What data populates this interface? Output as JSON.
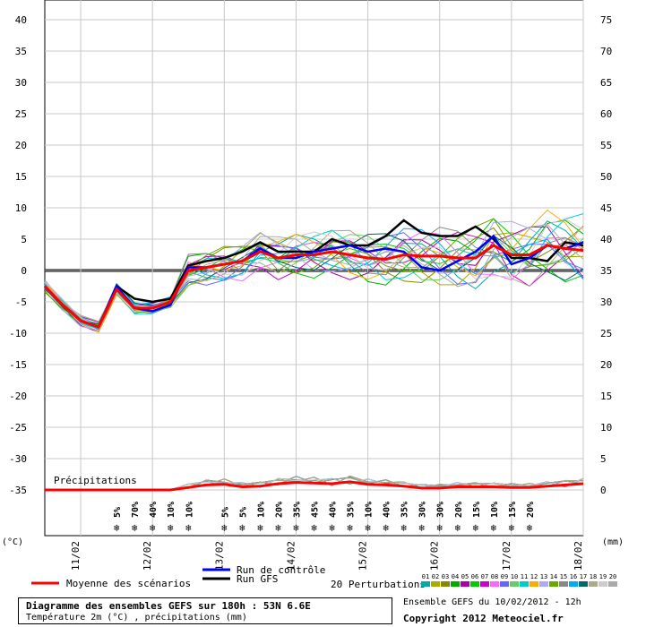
{
  "chart_data": {
    "type": "line",
    "title": "Diagramme des ensembles GEFS sur 180h : 53N 6.6E",
    "subtitle": "Température 2m (°C) , précipitations (mm)",
    "left_unit": "(°C)",
    "right_unit": "(mm)",
    "ylim_left": [
      -35,
      40
    ],
    "ylim_right": [
      0,
      75
    ],
    "left_ticks": [
      "40",
      "35",
      "30",
      "25",
      "20",
      "15",
      "10",
      "5",
      "0",
      "-5",
      "-10",
      "-15",
      "-20",
      "-25",
      "-30",
      "-35"
    ],
    "right_ticks": [
      "75",
      "70",
      "65",
      "60",
      "55",
      "50",
      "45",
      "40",
      "35",
      "30",
      "25",
      "20",
      "15",
      "10",
      "5",
      "0"
    ],
    "x_ticks": [
      "11/02",
      "12/02",
      "13/02",
      "14/02",
      "15/02",
      "16/02",
      "17/02",
      "18/02"
    ],
    "x_hours": [
      0,
      6,
      12,
      18,
      24,
      30,
      36,
      42,
      48,
      54,
      60,
      66,
      72,
      78,
      84,
      90,
      96,
      102,
      108,
      114,
      120,
      126,
      132,
      138,
      144,
      150,
      156,
      162,
      168,
      174,
      180
    ],
    "series": [
      {
        "name": "Moyenne des scénarios",
        "color": "#ff0000",
        "values": [
          -2.5,
          -5.5,
          -8,
          -9,
          -3,
          -6,
          -6,
          -5,
          0,
          0.5,
          1,
          1.5,
          3,
          2,
          2.5,
          2.5,
          3,
          2.5,
          2,
          1.8,
          2.5,
          2.3,
          2.3,
          2,
          2,
          4,
          2.5,
          2.5,
          4,
          3.5,
          3.2
        ]
      },
      {
        "name": "Run de contrôle",
        "color": "#0000ff",
        "values": [
          -2.5,
          -5.5,
          -8,
          -9,
          -2.5,
          -6,
          -6.5,
          -5.5,
          0.5,
          0.5,
          1,
          1.5,
          3.5,
          2,
          2,
          3,
          3.5,
          4,
          3,
          3.5,
          3,
          0.5,
          0,
          1.5,
          3,
          5.5,
          1,
          2,
          4,
          3.5,
          4.5
        ]
      },
      {
        "name": "Run GFS",
        "color": "#000000",
        "values": [
          -2.5,
          -5.5,
          -8,
          -9,
          -2.5,
          -4.5,
          -5,
          -4.5,
          0.8,
          1.5,
          2,
          3,
          4.5,
          3,
          3,
          3,
          5,
          4,
          4,
          5.5,
          8,
          6,
          5.5,
          5.5,
          7,
          5,
          2,
          2,
          1.5,
          4.5,
          4
        ]
      }
    ],
    "perturbations": {
      "label": "20 Perturbations",
      "ids": [
        "01",
        "02",
        "03",
        "04",
        "05",
        "06",
        "07",
        "08",
        "09",
        "10",
        "11",
        "12",
        "13",
        "14",
        "15",
        "16",
        "17",
        "18",
        "19",
        "20"
      ],
      "colors": [
        "#00aaaa",
        "#aaaa00",
        "#888800",
        "#00aa00",
        "#aa00aa",
        "#00cc00",
        "#cc00cc",
        "#ff66ff",
        "#6666ff",
        "#66cc66",
        "#00cccc",
        "#ffaa00",
        "#aaaaff",
        "#66aa00",
        "#888888",
        "#00aaff",
        "#006666",
        "#aaaa88",
        "#cccccc",
        "#aaaaaa"
      ]
    },
    "precip_mean_mm": [
      0,
      0,
      0,
      0,
      0,
      0,
      0,
      0,
      0.4,
      0.8,
      0.9,
      0.5,
      0.6,
      1,
      1.2,
      1.1,
      1,
      1.3,
      0.9,
      0.8,
      0.6,
      0.3,
      0.3,
      0.5,
      0.5,
      0.5,
      0.4,
      0.4,
      0.6,
      0.8,
      1
    ],
    "precip_label": "Précipitations",
    "snow_probabilities": [
      {
        "h": 12,
        "p": "5%"
      },
      {
        "h": 15,
        "p": "70%"
      },
      {
        "h": 18,
        "p": "40%"
      },
      {
        "h": 21,
        "p": "10%"
      },
      {
        "h": 24,
        "p": "10%"
      },
      {
        "h": 30,
        "p": "5%"
      },
      {
        "h": 33,
        "p": "5%"
      },
      {
        "h": 36,
        "p": "10%"
      },
      {
        "h": 39,
        "p": "20%"
      },
      {
        "h": 42,
        "p": "35%"
      },
      {
        "h": 45,
        "p": "45%"
      },
      {
        "h": 48,
        "p": "40%"
      },
      {
        "h": 51,
        "p": "35%"
      },
      {
        "h": 54,
        "p": "10%"
      },
      {
        "h": 57,
        "p": "40%"
      },
      {
        "h": 60,
        "p": "35%"
      },
      {
        "h": 63,
        "p": "30%"
      },
      {
        "h": 66,
        "p": "30%"
      },
      {
        "h": 69,
        "p": "20%"
      },
      {
        "h": 72,
        "p": "15%"
      },
      {
        "h": 75,
        "p": "10%"
      },
      {
        "h": 78,
        "p": "15%"
      },
      {
        "h": 81,
        "p": "20%"
      }
    ]
  },
  "legend": {
    "mean": "Moyenne des scénarios",
    "control": "Run de contrôle",
    "gfs": "Run GFS",
    "perturbations": "20 Perturbations"
  },
  "footer": {
    "title": "Diagramme des ensembles GEFS sur 180h : 53N 6.6E",
    "subtitle": "Température 2m (°C) , précipitations (mm)",
    "ens_date": "Ensemble GEFS du 10/02/2012 - 12h",
    "copyright": "Copyright 2012 Meteociel.fr"
  },
  "colors": {
    "mean": "#ff0000",
    "control": "#0000ff",
    "gfs": "#000000",
    "grid": "#c8c8c8",
    "snow": "#3399ff"
  }
}
